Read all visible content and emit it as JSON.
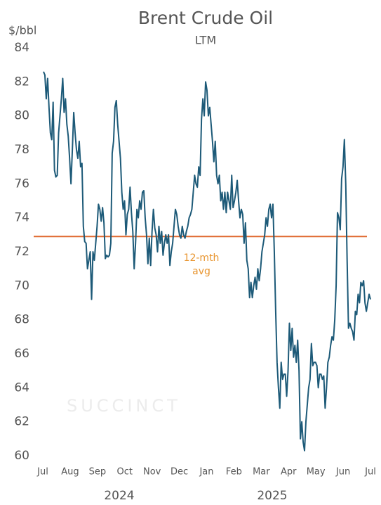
{
  "chart_data": {
    "type": "line",
    "title": "Brent Crude Oil",
    "subtitle": "LTM",
    "y_label": "$/bbl",
    "watermark": "SUCCINCT",
    "x_labels": [
      "Jul",
      "Aug",
      "Sep",
      "Oct",
      "Nov",
      "Dec",
      "Jan",
      "Feb",
      "Mar",
      "Apr",
      "May",
      "Jun",
      "Jul"
    ],
    "year_labels": [
      "2024",
      "2025"
    ],
    "ylim": [
      60,
      84
    ],
    "yticks": [
      60,
      62,
      64,
      66,
      68,
      70,
      72,
      74,
      76,
      78,
      80,
      82,
      84
    ],
    "series": [
      {
        "name": "Brent",
        "color": "#1d5a78",
        "values": [
          82.6,
          82.4,
          81.0,
          82.2,
          80.5,
          79.0,
          78.6,
          80.8,
          76.8,
          76.4,
          76.5,
          79.0,
          80.0,
          81.0,
          82.2,
          80.2,
          81.0,
          79.5,
          78.8,
          77.5,
          76.0,
          78.0,
          80.2,
          79.0,
          78.0,
          77.5,
          78.5,
          77.0,
          77.2,
          73.5,
          72.6,
          72.5,
          71.0,
          71.5,
          72.0,
          69.2,
          72.0,
          71.5,
          72.5,
          73.5,
          74.8,
          74.5,
          73.8,
          74.6,
          73.7,
          71.6,
          71.8,
          71.7,
          71.8,
          72.5,
          77.8,
          78.5,
          80.5,
          80.9,
          79.5,
          78.5,
          77.5,
          75.5,
          74.5,
          75.0,
          73.0,
          74.2,
          74.5,
          75.8,
          74.3,
          73.2,
          71.0,
          72.5,
          74.5,
          74.0,
          75.0,
          74.5,
          75.5,
          75.6,
          74.0,
          73.0,
          71.3,
          72.8,
          71.2,
          73.2,
          74.5,
          73.4,
          73.0,
          72.0,
          73.5,
          72.5,
          73.2,
          71.8,
          72.5,
          73.0,
          72.5,
          73.0,
          71.2,
          72.0,
          72.5,
          73.5,
          74.5,
          74.2,
          73.5,
          73.0,
          72.8,
          73.5,
          73.0,
          72.8,
          73.2,
          73.5,
          74.0,
          74.2,
          74.5,
          75.5,
          76.5,
          76.0,
          75.8,
          77.0,
          76.5,
          79.8,
          81.0,
          80.0,
          82.0,
          81.5,
          80.0,
          80.5,
          79.5,
          78.5,
          77.3,
          78.5,
          76.5,
          76.0,
          76.5,
          75.0,
          75.5,
          74.5,
          75.5,
          74.3,
          75.5,
          75.0,
          74.5,
          76.5,
          74.6,
          75.0,
          75.5,
          76.2,
          75.0,
          74.0,
          74.5,
          74.2,
          72.5,
          73.7,
          71.5,
          71.0,
          69.3,
          70.2,
          69.3,
          70.0,
          70.5,
          69.8,
          71.0,
          70.3,
          71.0,
          72.0,
          72.5,
          73.0,
          74.0,
          73.5,
          74.5,
          74.8,
          74.0,
          74.8,
          72.0,
          68.5,
          65.5,
          64.0,
          62.8,
          65.5,
          64.5,
          64.8,
          64.8,
          63.5,
          65.0,
          67.8,
          66.2,
          67.5,
          65.8,
          66.5,
          65.5,
          66.8,
          65.0,
          61.0,
          62.0,
          60.8,
          60.3,
          62.0,
          63.0,
          64.0,
          64.5,
          66.6,
          65.3,
          65.5,
          65.5,
          65.3,
          64.0,
          64.8,
          64.8,
          64.5,
          64.7,
          62.8,
          64.0,
          65.5,
          65.8,
          66.5,
          67.0,
          66.8,
          68.0,
          70.0,
          74.3,
          74.0,
          73.3,
          76.3,
          77.0,
          78.6,
          76.0,
          71.5,
          67.5,
          67.8,
          67.5,
          67.3,
          66.8,
          68.5,
          68.3,
          69.5,
          69.0,
          70.2,
          70.0,
          70.3,
          69.0,
          68.5,
          69.0,
          69.5,
          69.2
        ]
      }
    ],
    "reference_line": {
      "value": 72.9,
      "color": "#e0692f",
      "label": [
        "12-mth",
        "avg"
      ],
      "label_color": "#e8952f"
    }
  }
}
